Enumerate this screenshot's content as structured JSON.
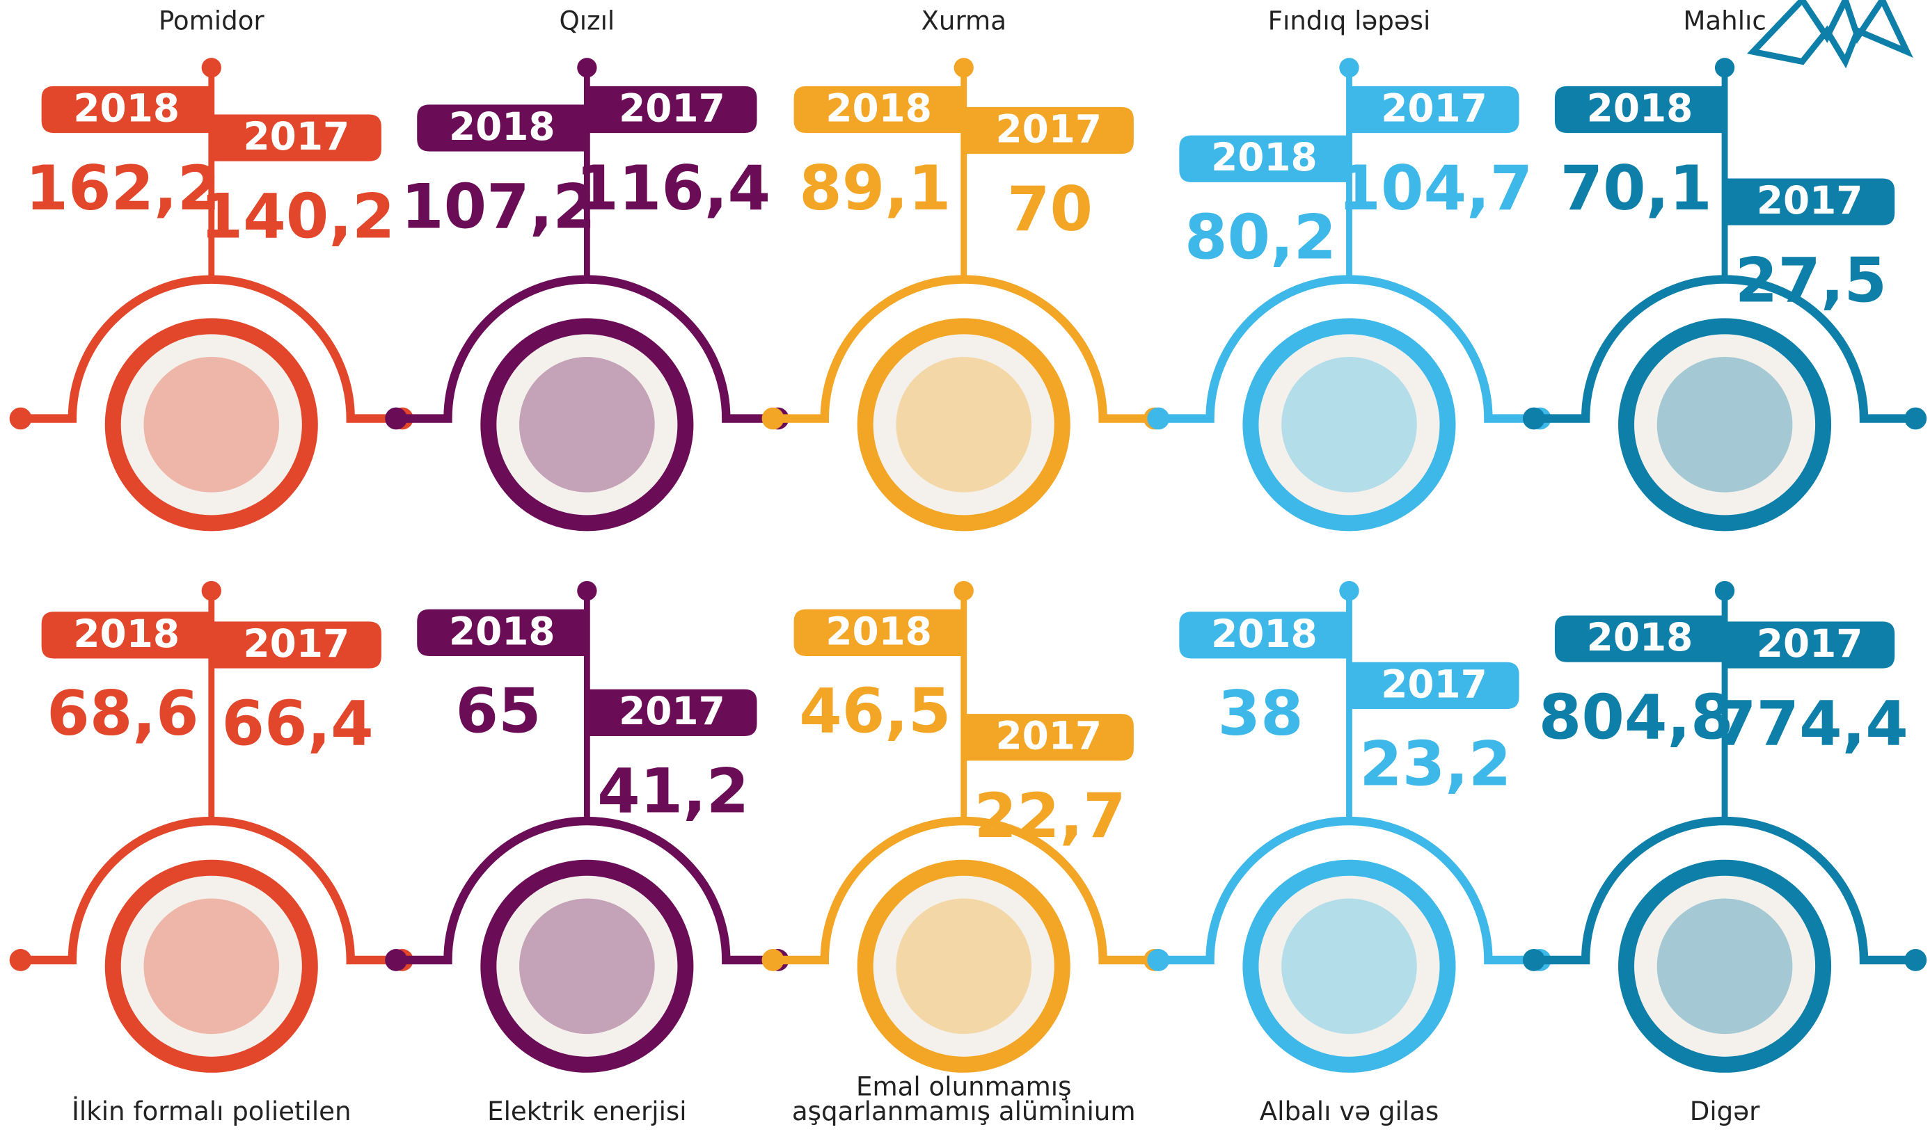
{
  "items": [
    {
      "name": [
        "Pomidor"
      ],
      "color": "#e2472b",
      "left": {
        "year": "2018",
        "value": "162,2"
      },
      "right": {
        "year": "2017",
        "value": "140,2"
      }
    },
    {
      "name": [
        "Qızıl"
      ],
      "color": "#6b0d56",
      "left": {
        "year": "2018",
        "value": "107,2"
      },
      "right": {
        "year": "2017",
        "value": "116,4"
      }
    },
    {
      "name": [
        "Xurma"
      ],
      "color": "#f3a625",
      "left": {
        "year": "2018",
        "value": "89,1"
      },
      "right": {
        "year": "2017",
        "value": "70"
      }
    },
    {
      "name": [
        "Fındıq ləpəsi"
      ],
      "color": "#3db8e8",
      "left": {
        "year": "2018",
        "value": "80,2"
      },
      "right": {
        "year": "2017",
        "value": "104,7"
      }
    },
    {
      "name": [
        "Mahlıc"
      ],
      "color": "#0e7fa8",
      "left": {
        "year": "2018",
        "value": "70,1"
      },
      "right": {
        "year": "2017",
        "value": "27,5"
      }
    },
    {
      "name": [
        "İlkin formalı polietilen"
      ],
      "color": "#e2472b",
      "left": {
        "year": "2018",
        "value": "68,6"
      },
      "right": {
        "year": "2017",
        "value": "66,4"
      }
    },
    {
      "name": [
        "Elektrik enerjisi"
      ],
      "color": "#6b0d56",
      "left": {
        "year": "2018",
        "value": "65"
      },
      "right": {
        "year": "2017",
        "value": "41,2"
      }
    },
    {
      "name": [
        "Emal olunmamış",
        "aşqarlanmamış alüminium"
      ],
      "color": "#f3a625",
      "left": {
        "year": "2018",
        "value": "46,5"
      },
      "right": {
        "year": "2017",
        "value": "22,7"
      }
    },
    {
      "name": [
        "Albalı və gilas"
      ],
      "color": "#3db8e8",
      "left": {
        "year": "2018",
        "value": "38"
      },
      "right": {
        "year": "2017",
        "value": "23,2"
      }
    },
    {
      "name": [
        "Digər"
      ],
      "color": "#0e7fa8",
      "left": {
        "year": "2018",
        "value": "804,8"
      },
      "right": {
        "year": "2017",
        "value": "774,4"
      }
    }
  ]
}
